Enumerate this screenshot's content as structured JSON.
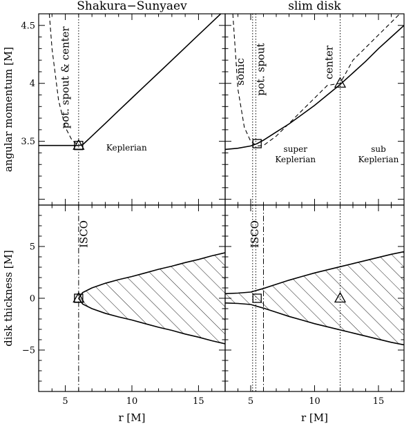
{
  "chart_data": [
    {
      "panel": "top-left",
      "type": "line",
      "title": "Shakura−Sunyaev",
      "ylabel": "angular momentum [M]",
      "xlim": [
        3,
        17
      ],
      "ylim": [
        2.95,
        4.6
      ],
      "yticks": [
        3.5,
        4,
        4.5
      ],
      "ytick_labels": [
        "3.5",
        "4",
        "4.5"
      ],
      "series": [
        {
          "style": "solid",
          "x": [
            3.0,
            6.0,
            6.3,
            7.0,
            8.0,
            9.0,
            10.0,
            11.0,
            12.0,
            13.0,
            14.0,
            15.0,
            16.0,
            17.0
          ],
          "y": [
            3.464,
            3.464,
            3.47,
            3.545,
            3.654,
            3.764,
            3.873,
            3.982,
            4.091,
            4.2,
            4.309,
            4.418,
            4.527,
            4.636
          ]
        },
        {
          "style": "dashed",
          "x": [
            3.8,
            4.0,
            4.5,
            5.0,
            5.5,
            6.0
          ],
          "y": [
            4.6,
            4.3,
            3.85,
            3.62,
            3.51,
            3.464
          ]
        }
      ],
      "vlines": [
        {
          "x": 6.0,
          "style": "dotted"
        }
      ],
      "markers": [
        {
          "shape": "triangle",
          "x": 6.0,
          "y": 3.464
        },
        {
          "shape": "square",
          "x": 6.0,
          "y": 3.464
        }
      ],
      "annotations": [
        {
          "text": "pot. spout & center",
          "x": 5.25,
          "y": 4.05,
          "rotation": -90
        },
        {
          "text": "Keplerian",
          "x": 9.6,
          "y": 3.42
        }
      ]
    },
    {
      "panel": "top-right",
      "type": "line",
      "title": "slim disk",
      "xlim": [
        3,
        17
      ],
      "ylim": [
        2.95,
        4.6
      ],
      "series": [
        {
          "style": "solid",
          "x": [
            3.0,
            4.0,
            5.0,
            5.5,
            6.0,
            7.0,
            8.0,
            9.0,
            10.0,
            11.0,
            12.0,
            13.0,
            14.0,
            15.0,
            16.0,
            17.0
          ],
          "y": [
            3.43,
            3.44,
            3.46,
            3.48,
            3.51,
            3.58,
            3.65,
            3.73,
            3.81,
            3.9,
            3.99,
            4.09,
            4.19,
            4.3,
            4.4,
            4.5
          ]
        },
        {
          "style": "dashed",
          "x": [
            3.6,
            4.0,
            4.5,
            5.0,
            5.5,
            6.0,
            7.0,
            8.0,
            9.0,
            10.0,
            11.0,
            12.0,
            13.0,
            14.0,
            15.0,
            16.0,
            17.0
          ],
          "y": [
            4.6,
            3.95,
            3.62,
            3.5,
            3.46,
            3.464,
            3.545,
            3.654,
            3.764,
            3.873,
            3.982,
            4.0,
            4.2,
            4.309,
            4.418,
            4.527,
            4.636
          ]
        }
      ],
      "vlines": [
        {
          "x": 5.15,
          "style": "dotted"
        },
        {
          "x": 5.4,
          "style": "dotted"
        },
        {
          "x": 12.0,
          "style": "dotted"
        }
      ],
      "markers": [
        {
          "shape": "square",
          "x": 5.5,
          "y": 3.48
        },
        {
          "shape": "triangle",
          "x": 12.0,
          "y": 4.0
        }
      ],
      "annotations": [
        {
          "text": "sonic",
          "x": 4.45,
          "y": 4.1,
          "rotation": -90
        },
        {
          "text": "pot. spout",
          "x": 6.05,
          "y": 4.12,
          "rotation": -90
        },
        {
          "text": "center",
          "x": 11.4,
          "y": 4.18,
          "rotation": -90
        },
        {
          "text": "super",
          "x": 8.5,
          "y": 3.41
        },
        {
          "text": "Keplerian",
          "x": 8.5,
          "y": 3.32
        },
        {
          "text": "sub",
          "x": 15.0,
          "y": 3.41
        },
        {
          "text": "Keplerian",
          "x": 15.0,
          "y": 3.32
        }
      ]
    },
    {
      "panel": "bottom-left",
      "type": "area",
      "ylabel": "disk thickness [M]",
      "xlabel": "r [M]",
      "xlim": [
        3,
        17
      ],
      "ylim": [
        -9,
        9
      ],
      "xticks": [
        5,
        10,
        15
      ],
      "xtick_labels": [
        "5",
        "10",
        "15"
      ],
      "yticks": [
        -5,
        0,
        5
      ],
      "ytick_labels": [
        "−5",
        "0",
        "5"
      ],
      "upper": {
        "x": [
          6.0,
          6.3,
          7.0,
          8.0,
          9.0,
          10.0,
          11.0,
          12.0,
          13.0,
          14.0,
          15.0,
          16.0,
          17.0
        ],
        "y": [
          0.0,
          0.55,
          1.0,
          1.45,
          1.8,
          2.1,
          2.45,
          2.8,
          3.1,
          3.45,
          3.75,
          4.1,
          4.4
        ]
      },
      "lower": {
        "x": [
          6.0,
          6.3,
          7.0,
          8.0,
          9.0,
          10.0,
          11.0,
          12.0,
          13.0,
          14.0,
          15.0,
          16.0,
          17.0
        ],
        "y": [
          0.0,
          -0.55,
          -1.0,
          -1.45,
          -1.8,
          -2.1,
          -2.45,
          -2.8,
          -3.1,
          -3.45,
          -3.75,
          -4.1,
          -4.4
        ]
      },
      "vlines": [
        {
          "x": 6.0,
          "style": "dashdot"
        }
      ],
      "markers": [
        {
          "shape": "triangle",
          "x": 6.0,
          "y": 0.0
        },
        {
          "shape": "square",
          "x": 6.0,
          "y": 0.0
        }
      ],
      "annotations": [
        {
          "text": "ISCO",
          "x": 6.65,
          "y": 6.2,
          "rotation": -90
        }
      ]
    },
    {
      "panel": "bottom-right",
      "type": "area",
      "xlabel": "r [M]",
      "xlim": [
        3,
        17
      ],
      "ylim": [
        -9,
        9
      ],
      "xticks": [
        5,
        10,
        15
      ],
      "xtick_labels": [
        "5",
        "10",
        "15"
      ],
      "upper": {
        "x": [
          3.0,
          4.0,
          5.0,
          6.0,
          7.0,
          8.0,
          9.0,
          10.0,
          11.0,
          12.0,
          13.0,
          14.0,
          15.0,
          16.0,
          17.0
        ],
        "y": [
          0.45,
          0.5,
          0.6,
          0.95,
          1.35,
          1.75,
          2.1,
          2.45,
          2.75,
          3.05,
          3.35,
          3.65,
          3.95,
          4.25,
          4.5
        ]
      },
      "lower": {
        "x": [
          3.0,
          4.0,
          5.0,
          6.0,
          7.0,
          8.0,
          9.0,
          10.0,
          11.0,
          12.0,
          13.0,
          14.0,
          15.0,
          16.0,
          17.0
        ],
        "y": [
          -0.45,
          -0.5,
          -0.6,
          -0.95,
          -1.35,
          -1.75,
          -2.1,
          -2.45,
          -2.75,
          -3.05,
          -3.35,
          -3.65,
          -3.95,
          -4.25,
          -4.5
        ]
      },
      "vlines": [
        {
          "x": 5.15,
          "style": "dotted"
        },
        {
          "x": 5.4,
          "style": "dotted"
        },
        {
          "x": 6.0,
          "style": "dashdot"
        },
        {
          "x": 12.0,
          "style": "dotted"
        }
      ],
      "markers": [
        {
          "shape": "square",
          "x": 5.5,
          "y": 0.0
        },
        {
          "shape": "triangle",
          "x": 12.0,
          "y": 0.0
        }
      ],
      "annotations": [
        {
          "text": "ISCO",
          "x": 5.6,
          "y": 6.2,
          "rotation": -90
        }
      ]
    }
  ]
}
